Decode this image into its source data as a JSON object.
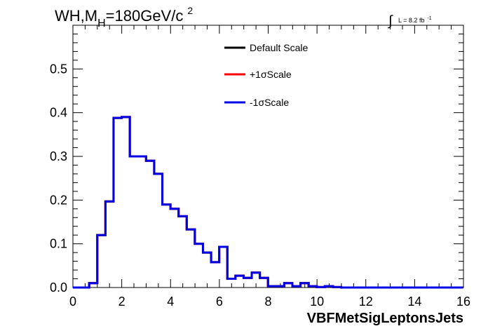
{
  "chart_data": {
    "type": "line",
    "title_main": "WH,M",
    "title_sub": "H",
    "title_rest": "=180GeV/c",
    "title_sup": "2",
    "lumi_integral": "∫",
    "lumi_text": "L = 8.2 fb",
    "lumi_sup": "-1",
    "xlabel": "VBFMetSigLeptonsJets",
    "ylabel": "",
    "xlim": [
      0,
      16
    ],
    "ylim": [
      0,
      0.6
    ],
    "xticks": [
      "0",
      "2",
      "4",
      "6",
      "8",
      "10",
      "12",
      "14",
      "16"
    ],
    "yticks": [
      "0.0",
      "0.1",
      "0.2",
      "0.3",
      "0.4",
      "0.5"
    ],
    "grid": false,
    "legend_position": "top-center",
    "bin_width": 0.333,
    "bin_start": 0,
    "series": [
      {
        "name": "Default Scale",
        "color": "#000000",
        "values": [
          0,
          0,
          0.01,
          0.12,
          0.197,
          0.388,
          0.39,
          0.3,
          0.3,
          0.29,
          0.26,
          0.19,
          0.18,
          0.163,
          0.133,
          0.1,
          0.08,
          0.058,
          0.093,
          0.02,
          0.027,
          0.022,
          0.034,
          0.022,
          0.003,
          0.003,
          0.01,
          0.003,
          0.01,
          0.003,
          0.001,
          0.003,
          0.001,
          0,
          0,
          0,
          0,
          0,
          0,
          0,
          0,
          0,
          0,
          0,
          0,
          0,
          0,
          0
        ]
      },
      {
        "name": "+1σScale",
        "color": "#ff0000",
        "values": [
          0,
          0,
          0.01,
          0.12,
          0.197,
          0.388,
          0.39,
          0.3,
          0.3,
          0.29,
          0.26,
          0.19,
          0.18,
          0.163,
          0.133,
          0.1,
          0.08,
          0.058,
          0.093,
          0.02,
          0.027,
          0.022,
          0.034,
          0.022,
          0.003,
          0.003,
          0.01,
          0.003,
          0.01,
          0.003,
          0.001,
          0.003,
          0.001,
          0,
          0,
          0,
          0,
          0,
          0,
          0,
          0,
          0,
          0,
          0,
          0,
          0,
          0,
          0
        ]
      },
      {
        "name": "-1σScale",
        "color": "#0000e6",
        "values": [
          0,
          0,
          0.01,
          0.12,
          0.197,
          0.388,
          0.39,
          0.3,
          0.3,
          0.29,
          0.26,
          0.19,
          0.18,
          0.163,
          0.133,
          0.1,
          0.08,
          0.058,
          0.093,
          0.02,
          0.027,
          0.022,
          0.034,
          0.022,
          0.003,
          0.003,
          0.01,
          0.003,
          0.01,
          0.003,
          0.001,
          0.003,
          0.001,
          0,
          0,
          0,
          0,
          0,
          0,
          0,
          0,
          0,
          0,
          0,
          0,
          0,
          0,
          0
        ]
      }
    ]
  }
}
